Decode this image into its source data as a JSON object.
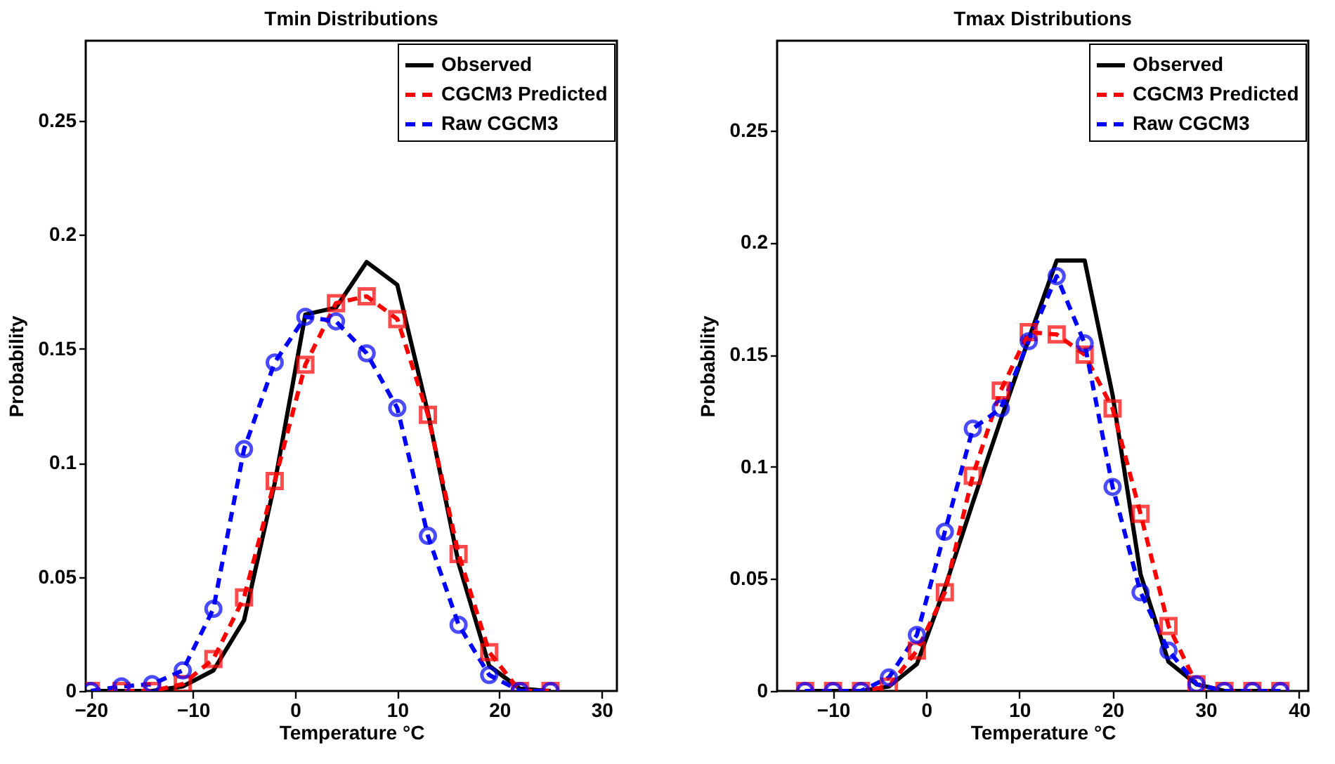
{
  "chart_data": [
    {
      "type": "line",
      "title": "Tmin Distributions",
      "xlabel": "Temperature °C",
      "ylabel": "Probability",
      "x": [
        -20,
        -17,
        -14,
        -11,
        -8,
        -5,
        -2,
        1,
        4,
        7,
        10,
        13,
        16,
        19,
        22,
        25
      ],
      "xlim": [
        -20.5,
        31.5
      ],
      "xticks": [
        -20,
        -10,
        0,
        10,
        20,
        30
      ],
      "ylim": [
        0,
        0.285
      ],
      "yticks": [
        0,
        0.05,
        0.1,
        0.15,
        0.2,
        0.25
      ],
      "legend": "top right",
      "grid": false,
      "series": [
        {
          "name": "Observed",
          "color": "#000000",
          "marker": "none",
          "line_style": "solid",
          "values": [
            0,
            0,
            0,
            0.002,
            0.009,
            0.031,
            0.091,
            0.165,
            0.168,
            0.188,
            0.178,
            0.122,
            0.056,
            0.011,
            0.001,
            0
          ]
        },
        {
          "name": "CGCM3 Predicted",
          "color": "#ff0000",
          "marker": "square",
          "line_style": "dashed",
          "values": [
            0,
            0,
            0,
            0.003,
            0.014,
            0.041,
            0.092,
            0.143,
            0.17,
            0.173,
            0.163,
            0.121,
            0.06,
            0.017,
            0,
            0
          ]
        },
        {
          "name": "Raw CGCM3",
          "color": "#0000ff",
          "marker": "circle",
          "line_style": "dashed",
          "values": [
            0,
            0.002,
            0.003,
            0.009,
            0.036,
            0.106,
            0.144,
            0.164,
            0.162,
            0.148,
            0.124,
            0.068,
            0.029,
            0.007,
            0,
            0
          ]
        }
      ]
    },
    {
      "type": "line",
      "title": "Tmax Distributions",
      "xlabel": "Temperature °C",
      "ylabel": "Probability",
      "x": [
        -13,
        -10,
        -7,
        -4,
        -1,
        2,
        5,
        8,
        11,
        14,
        17,
        20,
        23,
        26,
        29,
        32,
        35,
        38
      ],
      "xlim": [
        -16,
        41
      ],
      "xticks": [
        -10,
        0,
        10,
        20,
        30,
        40
      ],
      "ylim": [
        0,
        0.29
      ],
      "yticks": [
        0,
        0.05,
        0.1,
        0.15,
        0.2,
        0.25
      ],
      "legend": "top right",
      "grid": false,
      "series": [
        {
          "name": "Observed",
          "color": "#000000",
          "marker": "none",
          "line_style": "solid",
          "values": [
            0,
            0,
            0,
            0.002,
            0.012,
            0.046,
            0.084,
            0.121,
            0.157,
            0.192,
            0.192,
            0.132,
            0.052,
            0.013,
            0.003,
            0,
            0,
            0
          ]
        },
        {
          "name": "CGCM3 Predicted",
          "color": "#ff0000",
          "marker": "square",
          "line_style": "dashed",
          "values": [
            0,
            0,
            0,
            0.002,
            0.018,
            0.044,
            0.096,
            0.134,
            0.16,
            0.159,
            0.15,
            0.126,
            0.079,
            0.029,
            0.003,
            0,
            0,
            0
          ]
        },
        {
          "name": "Raw CGCM3",
          "color": "#0000ff",
          "marker": "circle",
          "line_style": "dashed",
          "values": [
            0,
            0,
            0,
            0.006,
            0.025,
            0.071,
            0.117,
            0.126,
            0.156,
            0.185,
            0.155,
            0.091,
            0.044,
            0.018,
            0.003,
            0,
            0,
            0
          ]
        }
      ]
    }
  ]
}
